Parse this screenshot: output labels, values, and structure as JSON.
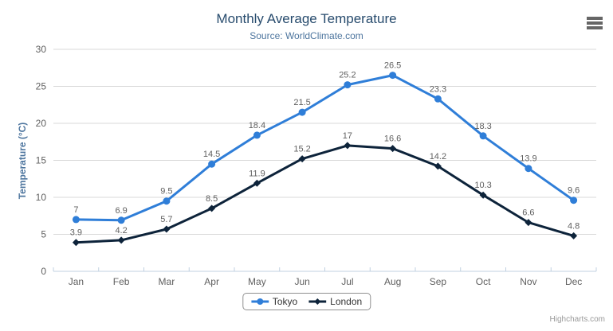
{
  "chart_data": {
    "type": "line",
    "title": "Monthly Average Temperature",
    "subtitle": "Source: WorldClimate.com",
    "categories": [
      "Jan",
      "Feb",
      "Mar",
      "Apr",
      "May",
      "Jun",
      "Jul",
      "Aug",
      "Sep",
      "Oct",
      "Nov",
      "Dec"
    ],
    "ylabel": "Temperature (°C)",
    "ylim": [
      0,
      30
    ],
    "ytick_interval": 5,
    "grid": true,
    "legend_position": "bottom",
    "data_labels": true,
    "series": [
      {
        "name": "Tokyo",
        "color": "#2f7ed8",
        "marker": "circle",
        "values": [
          7,
          6.9,
          9.5,
          14.5,
          18.4,
          21.5,
          25.2,
          26.5,
          23.3,
          18.3,
          13.9,
          9.6
        ]
      },
      {
        "name": "London",
        "color": "#0d233a",
        "marker": "diamond",
        "values": [
          3.9,
          4.2,
          5.7,
          8.5,
          11.9,
          15.2,
          17,
          16.6,
          14.2,
          10.3,
          6.6,
          4.8
        ]
      }
    ],
    "colors": {
      "grid_line": "#d8d8d8",
      "axis_line": "#c0d0e0",
      "axis_text": "#606060",
      "title_text": "#274b6d",
      "subtitle_text": "#4d759e"
    },
    "credit": "Highcharts.com",
    "menu_icon": "hamburger-menu-icon"
  }
}
